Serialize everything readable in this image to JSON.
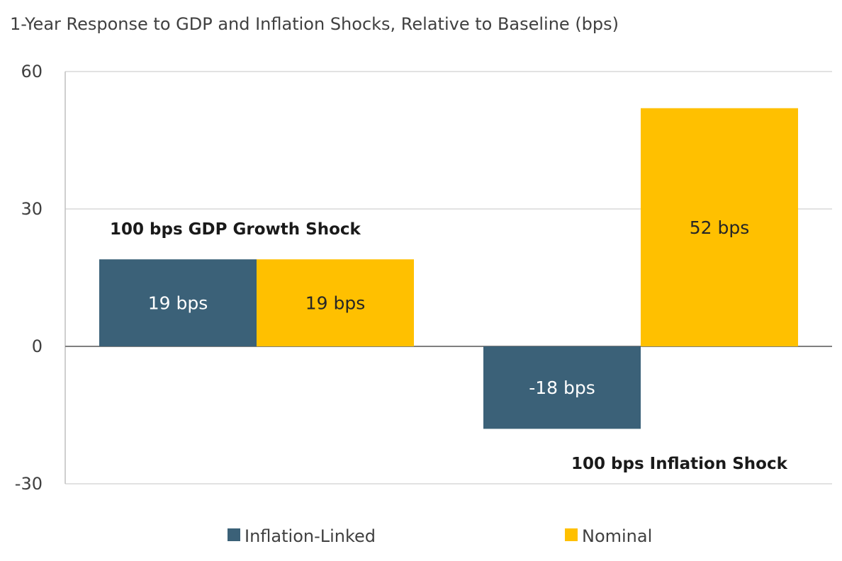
{
  "chart_data": {
    "type": "bar",
    "title": "1-Year Response to GDP and Inflation Shocks, Relative to Baseline (bps)",
    "categories": [
      "100 bps GDP Growth Shock",
      "100 bps Inflation Shock"
    ],
    "series": [
      {
        "name": "Inflation-Linked",
        "color": "#3b6178",
        "label_color": "#ffffff",
        "values": [
          19,
          -18
        ],
        "labels": [
          "19 bps",
          "-18 bps"
        ]
      },
      {
        "name": "Nominal",
        "color": "#ffc000",
        "label_color": "#262626",
        "values": [
          19,
          52
        ],
        "labels": [
          "19 bps",
          "52 bps"
        ]
      }
    ],
    "yticks": [
      60,
      30,
      0,
      -30
    ],
    "ylim": [
      -30,
      60
    ],
    "grid": true,
    "legend_position": "bottom"
  }
}
